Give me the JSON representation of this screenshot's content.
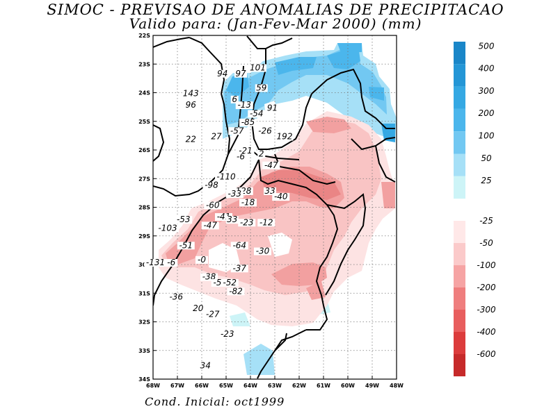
{
  "title_line1": "SIMOC - PREVISAO DE ANOMALIAS DE PRECIPITACAO",
  "title_line2": "Valido para: (Jan-Fev-Mar 2000) (mm)",
  "footer": "Cond. Inicial: oct1999",
  "map": {
    "lon_range": [
      -68,
      -48
    ],
    "lat_range": [
      -34,
      -22
    ],
    "lon_labels": [
      "68W",
      "67W",
      "66W",
      "65W",
      "64W",
      "63W",
      "62W",
      "61W",
      "60W",
      "49W",
      "48W"
    ],
    "lat_labels": [
      "22S",
      "23S",
      "24S",
      "25S",
      "26S",
      "27S",
      "28S",
      "29S",
      "30S",
      "31S",
      "32S",
      "33S",
      "34S"
    ],
    "contour_labels": [
      {
        "text": "94",
        "lon": -62.3,
        "lat": -23.4
      },
      {
        "text": "97",
        "lon": -60.8,
        "lat": -23.4
      },
      {
        "text": "101",
        "lon": -59.4,
        "lat": -23.2
      },
      {
        "text": "143",
        "lon": -64.9,
        "lat": -24.1
      },
      {
        "text": "59",
        "lon": -59.1,
        "lat": -23.9
      },
      {
        "text": "96",
        "lon": -64.9,
        "lat": -24.5
      },
      {
        "text": "6",
        "lon": -61.3,
        "lat": -24.3
      },
      {
        "text": "-13",
        "lon": -60.5,
        "lat": -24.5
      },
      {
        "text": "-54",
        "lon": -59.5,
        "lat": -24.8
      },
      {
        "text": "91",
        "lon": -58.2,
        "lat": -24.6
      },
      {
        "text": "-85",
        "lon": -60.2,
        "lat": -25.1
      },
      {
        "text": "-57",
        "lon": -61.1,
        "lat": -25.4
      },
      {
        "text": "-26",
        "lon": -58.8,
        "lat": -25.4
      },
      {
        "text": "192",
        "lon": -57.2,
        "lat": -25.6
      },
      {
        "text": "22",
        "lon": -64.9,
        "lat": -25.7
      },
      {
        "text": "27",
        "lon": -62.8,
        "lat": -25.6
      },
      {
        "text": "-21",
        "lon": -60.4,
        "lat": -26.1
      },
      {
        "text": "-6",
        "lon": -60.8,
        "lat": -26.3
      },
      {
        "text": "2",
        "lon": -59.1,
        "lat": -26.2
      },
      {
        "text": "-47",
        "lon": -58.3,
        "lat": -26.6
      },
      {
        "text": "-110",
        "lon": -62.0,
        "lat": -27.0
      },
      {
        "text": "-98",
        "lon": -63.2,
        "lat": -27.3
      },
      {
        "text": "-128",
        "lon": -60.7,
        "lat": -27.5
      },
      {
        "text": "-33",
        "lon": -61.3,
        "lat": -27.6
      },
      {
        "text": "33",
        "lon": -58.4,
        "lat": -27.5
      },
      {
        "text": "-40",
        "lon": -57.5,
        "lat": -27.7
      },
      {
        "text": "-18",
        "lon": -60.2,
        "lat": -27.9
      },
      {
        "text": "-60",
        "lon": -63.1,
        "lat": -28.0
      },
      {
        "text": "-53",
        "lon": -65.5,
        "lat": -28.5
      },
      {
        "text": "-41",
        "lon": -62.2,
        "lat": -28.4
      },
      {
        "text": "33",
        "lon": -61.5,
        "lat": -28.5
      },
      {
        "text": "-23",
        "lon": -60.3,
        "lat": -28.6
      },
      {
        "text": "-12",
        "lon": -58.7,
        "lat": -28.6
      },
      {
        "text": "-103",
        "lon": -66.8,
        "lat": -28.8
      },
      {
        "text": "-47",
        "lon": -63.3,
        "lat": -28.7
      },
      {
        "text": "-51",
        "lon": -65.3,
        "lat": -29.4
      },
      {
        "text": "-64",
        "lon": -60.9,
        "lat": -29.4
      },
      {
        "text": "-30",
        "lon": -59.0,
        "lat": -29.6
      },
      {
        "text": "-0",
        "lon": -64.0,
        "lat": -29.9
      },
      {
        "text": "-131",
        "lon": -67.8,
        "lat": -30.0
      },
      {
        "text": "-6",
        "lon": -66.5,
        "lat": -30.0
      },
      {
        "text": "-37",
        "lon": -60.9,
        "lat": -30.2
      },
      {
        "text": "-38",
        "lon": -63.4,
        "lat": -30.5
      },
      {
        "text": "-54",
        "lon": -62.5,
        "lat": -30.7
      },
      {
        "text": "-52",
        "lon": -61.7,
        "lat": -30.7
      },
      {
        "text": "-82",
        "lon": -61.2,
        "lat": -31.0
      },
      {
        "text": "-36",
        "lon": -66.1,
        "lat": -31.2
      },
      {
        "text": "20",
        "lon": -64.3,
        "lat": -31.6
      },
      {
        "text": "-27",
        "lon": -63.1,
        "lat": -31.8
      },
      {
        "text": "-23",
        "lon": -61.9,
        "lat": -32.5
      },
      {
        "text": "34",
        "lon": -63.7,
        "lat": -33.6
      }
    ]
  },
  "colorbar_positive": {
    "levels": [
      "500",
      "400",
      "300",
      "200",
      "100",
      "50",
      "25"
    ],
    "colors": [
      "#1a86c8",
      "#2496d6",
      "#35a8e3",
      "#4bb6ec",
      "#72c8f2",
      "#a6e0f7",
      "#cdf4f7"
    ]
  },
  "colorbar_negative": {
    "levels": [
      "-25",
      "-50",
      "-100",
      "-200",
      "-300",
      "-400",
      "-600"
    ],
    "colors": [
      "#ffe8e8",
      "#fbcaca",
      "#f6a4a4",
      "#ef7e7e",
      "#e85e5e",
      "#dc3c3c",
      "#c62a2a"
    ]
  },
  "shading_colors": {
    "blue_dark": "#4bb6ec",
    "blue_mid": "#72c8f2",
    "blue_light": "#a6e0f7",
    "cyan": "#cdf4f7",
    "red_pale": "#fde3e3",
    "red_light": "#f9c4c4",
    "red_mid": "#f2a0a0",
    "red_dark": "#ea8585"
  }
}
